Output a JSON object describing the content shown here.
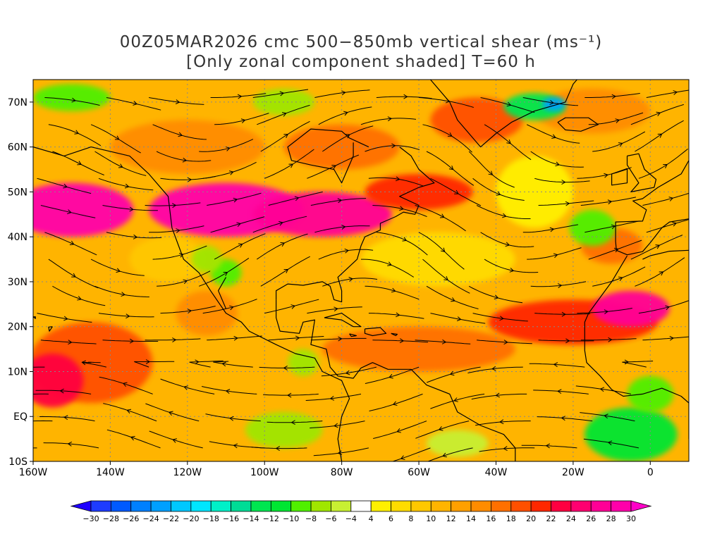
{
  "title": {
    "line1": "00Z05MAR2026 cmc 500−850mb vertical shear (ms⁻¹)",
    "line2": "[Only zonal component shaded] T=60 h"
  },
  "map": {
    "lon_range": [
      -160,
      10
    ],
    "lat_range": [
      -10,
      75
    ],
    "lon_ticks": [
      {
        "value": -160,
        "label": "160W"
      },
      {
        "value": -140,
        "label": "140W"
      },
      {
        "value": -120,
        "label": "120W"
      },
      {
        "value": -100,
        "label": "100W"
      },
      {
        "value": -80,
        "label": "80W"
      },
      {
        "value": -60,
        "label": "60W"
      },
      {
        "value": -40,
        "label": "40W"
      },
      {
        "value": -20,
        "label": "20W"
      },
      {
        "value": 0,
        "label": "0"
      }
    ],
    "lat_ticks": [
      {
        "value": 70,
        "label": "70N"
      },
      {
        "value": 60,
        "label": "60N"
      },
      {
        "value": 50,
        "label": "50N"
      },
      {
        "value": 40,
        "label": "40N"
      },
      {
        "value": 30,
        "label": "30N"
      },
      {
        "value": 20,
        "label": "20N"
      },
      {
        "value": 10,
        "label": "10N"
      },
      {
        "value": 0,
        "label": "EQ"
      },
      {
        "value": -10,
        "label": "10S"
      }
    ],
    "features": [
      {
        "type": "blob",
        "lon": -150,
        "lat": 46,
        "rx": 16,
        "ry": 6,
        "value": 28
      },
      {
        "type": "blob",
        "lon": -110,
        "lat": 46,
        "rx": 20,
        "ry": 6,
        "value": 28
      },
      {
        "type": "blob",
        "lon": -85,
        "lat": 45,
        "rx": 18,
        "ry": 5,
        "value": 26
      },
      {
        "type": "blob",
        "lon": -60,
        "lat": 50,
        "rx": 14,
        "ry": 4,
        "value": 20
      },
      {
        "type": "blob",
        "lon": -120,
        "lat": 60,
        "rx": 20,
        "ry": 6,
        "value": 14
      },
      {
        "type": "blob",
        "lon": -80,
        "lat": 60,
        "rx": 15,
        "ry": 5,
        "value": 16
      },
      {
        "type": "blob",
        "lon": -45,
        "lat": 66,
        "rx": 12,
        "ry": 5,
        "value": 18
      },
      {
        "type": "blob",
        "lon": -15,
        "lat": 68,
        "rx": 15,
        "ry": 5,
        "value": 14
      },
      {
        "type": "blob",
        "lon": -145,
        "lat": 12,
        "rx": 16,
        "ry": 9,
        "value": 18
      },
      {
        "type": "blob",
        "lon": -155,
        "lat": 8,
        "rx": 8,
        "ry": 6,
        "value": 22
      },
      {
        "type": "blob",
        "lon": -115,
        "lat": 23,
        "rx": 8,
        "ry": 5,
        "value": 14
      },
      {
        "type": "blob",
        "lon": -60,
        "lat": 15,
        "rx": 25,
        "ry": 5,
        "value": 16
      },
      {
        "type": "blob",
        "lon": -20,
        "lat": 21,
        "rx": 22,
        "ry": 5,
        "value": 20
      },
      {
        "type": "blob",
        "lon": -5,
        "lat": 24,
        "rx": 10,
        "ry": 4,
        "value": 26
      },
      {
        "type": "blob",
        "lon": -10,
        "lat": 38,
        "rx": 8,
        "ry": 4,
        "value": 16
      },
      {
        "type": "blob",
        "lon": -55,
        "lat": 35,
        "rx": 20,
        "ry": 6,
        "value": 6
      },
      {
        "type": "blob",
        "lon": -125,
        "lat": 35,
        "rx": 10,
        "ry": 5,
        "value": 8
      },
      {
        "type": "blob",
        "lon": -110,
        "lat": 32,
        "rx": 4,
        "ry": 3,
        "value": -10
      },
      {
        "type": "blob",
        "lon": -115,
        "lat": 35,
        "rx": 4,
        "ry": 3,
        "value": -8
      },
      {
        "type": "blob",
        "lon": -95,
        "lat": -3,
        "rx": 10,
        "ry": 4,
        "value": -8
      },
      {
        "type": "blob",
        "lon": -50,
        "lat": -6,
        "rx": 8,
        "ry": 3,
        "value": -6
      },
      {
        "type": "blob",
        "lon": -5,
        "lat": -4,
        "rx": 12,
        "ry": 6,
        "value": -12
      },
      {
        "type": "blob",
        "lon": 0,
        "lat": 5,
        "rx": 6,
        "ry": 4,
        "value": -10
      },
      {
        "type": "blob",
        "lon": -15,
        "lat": 42,
        "rx": 6,
        "ry": 4,
        "value": -10
      },
      {
        "type": "blob",
        "lon": -30,
        "lat": 69,
        "rx": 8,
        "ry": 3,
        "value": -14
      },
      {
        "type": "blob",
        "lon": -25,
        "lat": 69.5,
        "rx": 3,
        "ry": 1.5,
        "value": -24
      },
      {
        "type": "blob",
        "lon": -95,
        "lat": 70,
        "rx": 8,
        "ry": 3,
        "value": -8
      },
      {
        "type": "blob",
        "lon": -150,
        "lat": 71,
        "rx": 10,
        "ry": 3,
        "value": -10
      },
      {
        "type": "blob",
        "lon": -90,
        "lat": 12,
        "rx": 4,
        "ry": 3,
        "value": -8
      },
      {
        "type": "blob",
        "lon": -30,
        "lat": 50,
        "rx": 10,
        "ry": 8,
        "value": 4
      }
    ]
  },
  "colorbar": {
    "values": [
      -30,
      -28,
      -26,
      -24,
      -22,
      -20,
      -18,
      -16,
      -14,
      -12,
      -10,
      -8,
      -6,
      -4,
      4,
      6,
      8,
      10,
      12,
      14,
      16,
      18,
      20,
      22,
      24,
      26,
      28,
      30
    ],
    "labels": [
      "−30",
      "−28",
      "−26",
      "−24",
      "−22",
      "−20",
      "−18",
      "−16",
      "−14",
      "−12",
      "−10",
      "−8",
      "−6",
      "−4",
      "4",
      "6",
      "8",
      "10",
      "12",
      "14",
      "16",
      "18",
      "20",
      "22",
      "24",
      "26",
      "28",
      "30"
    ],
    "colors": [
      "#1e00ff",
      "#1e3cff",
      "#005aff",
      "#0080ff",
      "#00a0ff",
      "#00c8ff",
      "#00e6ff",
      "#00f0c8",
      "#00dc96",
      "#00e650",
      "#00e632",
      "#50f000",
      "#a0e600",
      "#c8f032",
      "#ffffff",
      "#fff000",
      "#ffdc00",
      "#ffc800",
      "#ffb400",
      "#ffa000",
      "#ff8c00",
      "#ff7000",
      "#ff5000",
      "#ff2800",
      "#ff0040",
      "#ff0070",
      "#ff0096",
      "#ff00aa",
      "#ff00c8"
    ]
  }
}
